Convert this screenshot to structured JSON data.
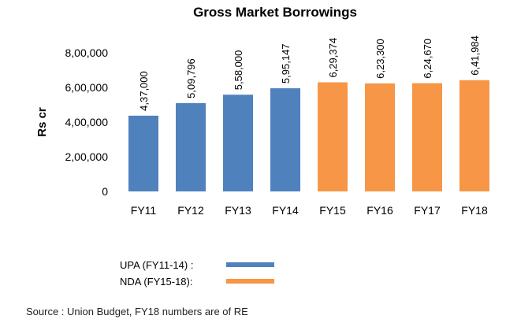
{
  "chart_data": {
    "type": "bar",
    "title": "Gross Market Borrowings",
    "ylabel": "Rs cr",
    "xlabel": "",
    "categories": [
      "FY11",
      "FY12",
      "FY13",
      "FY14",
      "FY15",
      "FY16",
      "FY17",
      "FY18"
    ],
    "values": [
      437000,
      509796,
      558000,
      595147,
      629374,
      623300,
      624670,
      641984
    ],
    "data_labels": [
      "4,37,000",
      "5,09,796",
      "5,58,000",
      "5,95,147",
      "6,29,374",
      "6,23,300",
      "6,24,670",
      "6,41,984"
    ],
    "ylim": [
      0,
      800000
    ],
    "yticks": [
      0,
      200000,
      400000,
      600000,
      800000
    ],
    "ytick_labels": [
      "0",
      "2,00,000",
      "4,00,000",
      "6,00,000",
      "8,00,000"
    ],
    "grid": false,
    "legend_position": "bottom-left",
    "series": [
      {
        "name": "UPA (FY11-14) :",
        "color": "#4f81bd",
        "categories": [
          "FY11",
          "FY12",
          "FY13",
          "FY14"
        ]
      },
      {
        "name": "NDA (FY15-18):",
        "color": "#f79646",
        "categories": [
          "FY15",
          "FY16",
          "FY17",
          "FY18"
        ]
      }
    ]
  },
  "source": "Source : Union Budget, FY18 numbers are of RE"
}
